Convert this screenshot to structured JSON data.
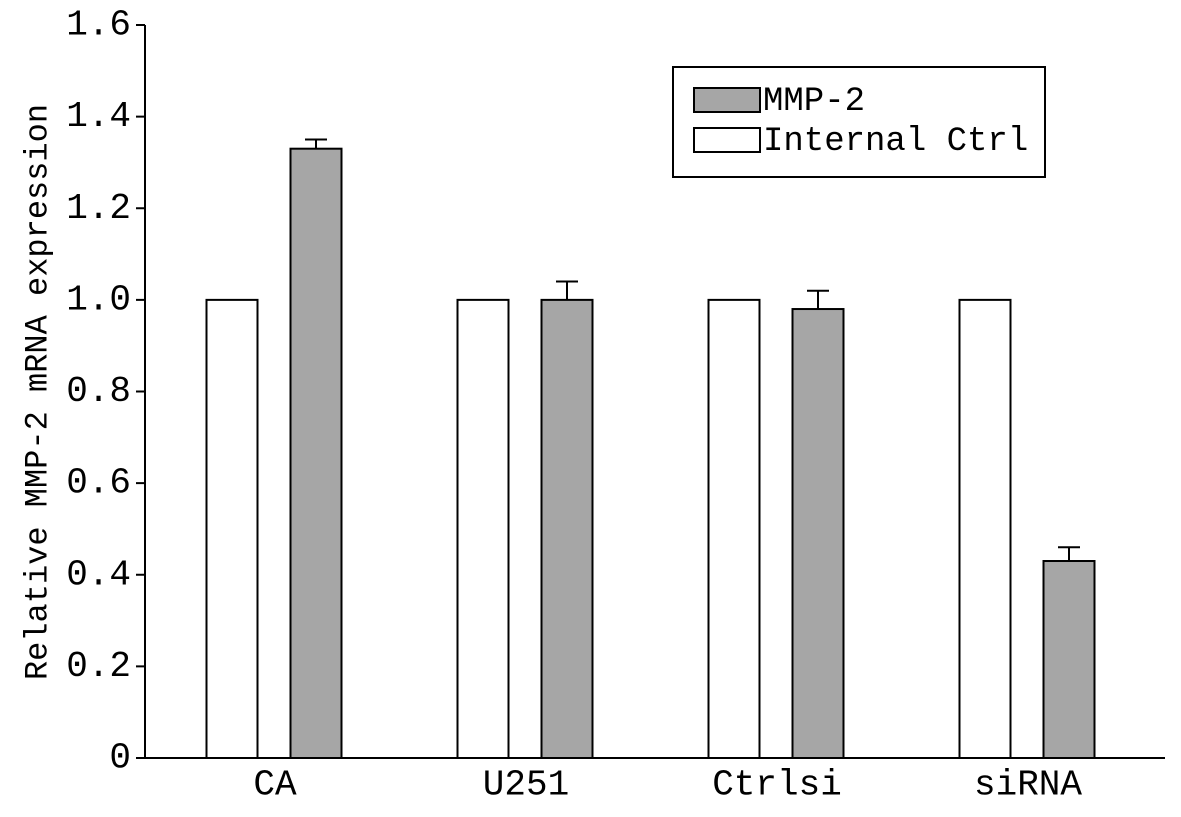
{
  "chart_data": {
    "type": "bar",
    "y_label": "Relative MMP-2 mRNA expression",
    "categories": [
      "CA",
      "U251",
      "Ctrlsi",
      "siRNA"
    ],
    "series": [
      {
        "name": "MMP-2",
        "color": "#a6a6a6",
        "values": [
          1.33,
          1.0,
          0.98,
          0.43
        ],
        "errors": [
          0.02,
          0.04,
          0.04,
          0.03
        ]
      },
      {
        "name": "Internal Ctrl",
        "color": "#ffffff",
        "values": [
          1,
          1,
          1,
          1
        ]
      }
    ],
    "ylim": [
      0,
      1.6
    ],
    "yticks": [
      0,
      0.2,
      0.4,
      0.6,
      0.8,
      {
        "value": 1,
        "label": "1.0"
      },
      1.2,
      1.4,
      1.6
    ],
    "legend": "upper right"
  }
}
